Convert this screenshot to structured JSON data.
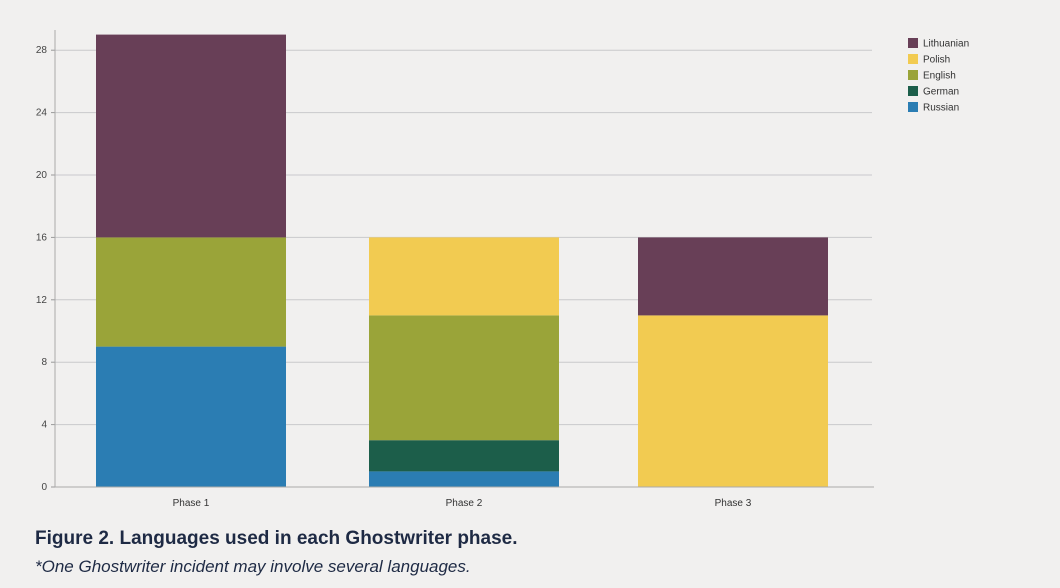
{
  "chart_data": {
    "type": "bar",
    "stacked": true,
    "categories": [
      "Phase 1",
      "Phase 2",
      "Phase 3"
    ],
    "series": [
      {
        "name": "Russian",
        "color": "#2b7db3",
        "values": [
          9,
          1,
          0
        ]
      },
      {
        "name": "German",
        "color": "#1c5e4a",
        "values": [
          0,
          2,
          0
        ]
      },
      {
        "name": "English",
        "color": "#9aa439",
        "values": [
          7,
          8,
          0
        ]
      },
      {
        "name": "Polish",
        "color": "#f2cb51",
        "values": [
          0,
          5,
          11
        ]
      },
      {
        "name": "Lithuanian",
        "color": "#683f57",
        "values": [
          13,
          0,
          5
        ]
      }
    ],
    "legend_order": [
      "Lithuanian",
      "Polish",
      "English",
      "German",
      "Russian"
    ],
    "yticks": [
      0,
      4,
      8,
      12,
      16,
      20,
      24,
      28
    ],
    "ylim": [
      0,
      29
    ],
    "grid": true,
    "legend_position": "top-right",
    "title": "Figure 2. Languages used in each Ghostwriter phase.",
    "note": "*One Ghostwriter incident may involve several languages."
  }
}
